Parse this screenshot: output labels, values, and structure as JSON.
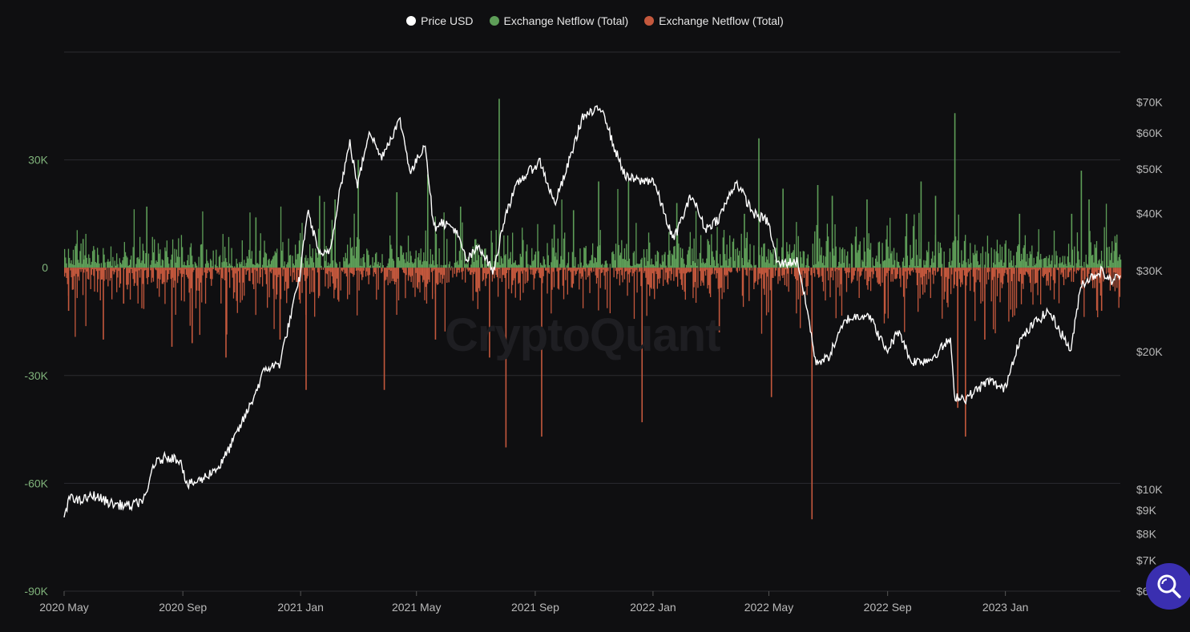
{
  "colors": {
    "price": "#ffffff",
    "inflow": "#5e9e58",
    "outflow": "#c4583d",
    "left_axis_text": "#7fb27a",
    "right_axis_text": "#b9b9b9",
    "grid": "#2b2b30",
    "background": "#0f0f11"
  },
  "watermark": "CryptoQuant",
  "search_icon": "magnifier-icon",
  "chart_data": {
    "type": "bar+line",
    "legend": [
      {
        "label": "Price USD",
        "color": "#ffffff"
      },
      {
        "label": "Exchange Netflow (Total)",
        "color": "#5e9e58"
      },
      {
        "label": "Exchange Netflow (Total)",
        "color": "#c4583d"
      }
    ],
    "x_range": [
      "2020-05-01",
      "2023-04-30"
    ],
    "x_ticks": [
      {
        "label": "2020 May",
        "date": "2020-05-01"
      },
      {
        "label": "2020 Sep",
        "date": "2020-09-01"
      },
      {
        "label": "2021 Jan",
        "date": "2021-01-01"
      },
      {
        "label": "2021 May",
        "date": "2021-05-01"
      },
      {
        "label": "2021 Sep",
        "date": "2021-09-01"
      },
      {
        "label": "2022 Jan",
        "date": "2022-01-01"
      },
      {
        "label": "2022 May",
        "date": "2022-05-01"
      },
      {
        "label": "2022 Sep",
        "date": "2022-09-01"
      },
      {
        "label": "2023 Jan",
        "date": "2023-01-01"
      }
    ],
    "left_axis": {
      "range": [
        -90000,
        60000
      ],
      "ticks": [
        {
          "label": "30K",
          "value": 30000
        },
        {
          "label": "0",
          "value": 0
        },
        {
          "label": "-30K",
          "value": -30000
        },
        {
          "label": "-60K",
          "value": -60000
        },
        {
          "label": "-90K",
          "value": -90000
        }
      ]
    },
    "right_axis": {
      "scale": "log",
      "range": [
        6000,
        90000
      ],
      "ticks": [
        {
          "label": "$70K",
          "value": 70000
        },
        {
          "label": "$60K",
          "value": 60000
        },
        {
          "label": "$50K",
          "value": 50000
        },
        {
          "label": "$40K",
          "value": 40000
        },
        {
          "label": "$30K",
          "value": 30000
        },
        {
          "label": "$20K",
          "value": 20000
        },
        {
          "label": "$10K",
          "value": 10000
        },
        {
          "label": "$9K",
          "value": 9000
        },
        {
          "label": "$8K",
          "value": 8000
        },
        {
          "label": "$7K",
          "value": 7000
        },
        {
          "label": "$6K",
          "value": 6000
        }
      ]
    },
    "price_series": [
      [
        "2020-05-01",
        8600
      ],
      [
        "2020-05-08",
        9800
      ],
      [
        "2020-05-15",
        9400
      ],
      [
        "2020-06-01",
        9700
      ],
      [
        "2020-06-20",
        9300
      ],
      [
        "2020-07-10",
        9200
      ],
      [
        "2020-07-25",
        9600
      ],
      [
        "2020-08-01",
        11300
      ],
      [
        "2020-08-15",
        11800
      ],
      [
        "2020-08-30",
        11600
      ],
      [
        "2020-09-05",
        10200
      ],
      [
        "2020-09-20",
        10500
      ],
      [
        "2020-10-10",
        11300
      ],
      [
        "2020-10-25",
        13000
      ],
      [
        "2020-11-10",
        15300
      ],
      [
        "2020-11-25",
        18300
      ],
      [
        "2020-12-10",
        18800
      ],
      [
        "2020-12-20",
        23000
      ],
      [
        "2020-12-31",
        29000
      ],
      [
        "2021-01-08",
        40500
      ],
      [
        "2021-01-22",
        32000
      ],
      [
        "2021-02-01",
        33500
      ],
      [
        "2021-02-10",
        44500
      ],
      [
        "2021-02-21",
        57000
      ],
      [
        "2021-03-01",
        46000
      ],
      [
        "2021-03-13",
        61000
      ],
      [
        "2021-03-25",
        53000
      ],
      [
        "2021-04-14",
        64000
      ],
      [
        "2021-04-25",
        49000
      ],
      [
        "2021-05-10",
        57000
      ],
      [
        "2021-05-19",
        37000
      ],
      [
        "2021-05-25",
        38500
      ],
      [
        "2021-06-10",
        37000
      ],
      [
        "2021-06-22",
        31500
      ],
      [
        "2021-07-05",
        34000
      ],
      [
        "2021-07-20",
        29800
      ],
      [
        "2021-08-01",
        40000
      ],
      [
        "2021-08-15",
        47000
      ],
      [
        "2021-09-06",
        52000
      ],
      [
        "2021-09-21",
        42000
      ],
      [
        "2021-10-01",
        48000
      ],
      [
        "2021-10-20",
        65000
      ],
      [
        "2021-11-10",
        68000
      ],
      [
        "2021-11-20",
        57000
      ],
      [
        "2021-12-04",
        48000
      ],
      [
        "2021-12-20",
        47000
      ],
      [
        "2022-01-01",
        47500
      ],
      [
        "2022-01-22",
        35000
      ],
      [
        "2022-02-10",
        44000
      ],
      [
        "2022-02-24",
        37000
      ],
      [
        "2022-03-10",
        39000
      ],
      [
        "2022-03-28",
        47000
      ],
      [
        "2022-04-15",
        40000
      ],
      [
        "2022-04-30",
        38500
      ],
      [
        "2022-05-10",
        31000
      ],
      [
        "2022-05-31",
        31500
      ],
      [
        "2022-06-13",
        22500
      ],
      [
        "2022-06-18",
        19000
      ],
      [
        "2022-07-01",
        19300
      ],
      [
        "2022-07-20",
        23500
      ],
      [
        "2022-08-12",
        24200
      ],
      [
        "2022-08-31",
        20000
      ],
      [
        "2022-09-13",
        22300
      ],
      [
        "2022-09-25",
        19000
      ],
      [
        "2022-10-15",
        19200
      ],
      [
        "2022-11-05",
        21300
      ],
      [
        "2022-11-09",
        16000
      ],
      [
        "2022-11-21",
        15800
      ],
      [
        "2022-12-15",
        17300
      ],
      [
        "2022-12-31",
        16500
      ],
      [
        "2023-01-14",
        20800
      ],
      [
        "2023-01-31",
        23100
      ],
      [
        "2023-02-15",
        24500
      ],
      [
        "2023-03-10",
        20100
      ],
      [
        "2023-03-20",
        28000
      ],
      [
        "2023-04-10",
        30000
      ],
      [
        "2023-04-20",
        28500
      ],
      [
        "2023-04-30",
        29300
      ]
    ],
    "netflow_spikes": [
      [
        "2020-05-05",
        -12000
      ],
      [
        "2020-05-20",
        8000
      ],
      [
        "2020-06-10",
        -20000
      ],
      [
        "2020-07-01",
        -10000
      ],
      [
        "2020-07-25",
        17000
      ],
      [
        "2020-08-20",
        -22000
      ],
      [
        "2020-09-10",
        -21000
      ],
      [
        "2020-10-15",
        -25000
      ],
      [
        "2020-11-15",
        14000
      ],
      [
        "2020-12-10",
        -20000
      ],
      [
        "2021-01-06",
        -34000
      ],
      [
        "2021-01-20",
        20000
      ],
      [
        "2021-02-05",
        19000
      ],
      [
        "2021-03-01",
        30000
      ],
      [
        "2021-03-28",
        -34000
      ],
      [
        "2021-04-10",
        21000
      ],
      [
        "2021-05-12",
        26000
      ],
      [
        "2021-05-20",
        -20000
      ],
      [
        "2021-06-15",
        17000
      ],
      [
        "2021-07-15",
        -25000
      ],
      [
        "2021-07-25",
        47000
      ],
      [
        "2021-08-01",
        -50000
      ],
      [
        "2021-09-07",
        -47000
      ],
      [
        "2021-09-20",
        12000
      ],
      [
        "2021-10-10",
        16000
      ],
      [
        "2021-11-05",
        24000
      ],
      [
        "2021-12-06",
        24000
      ],
      [
        "2021-12-20",
        -43000
      ],
      [
        "2022-01-25",
        18000
      ],
      [
        "2022-03-10",
        -18000
      ],
      [
        "2022-04-05",
        15000
      ],
      [
        "2022-04-20",
        36000
      ],
      [
        "2022-05-03",
        -36000
      ],
      [
        "2022-05-15",
        22000
      ],
      [
        "2022-06-14",
        -70000
      ],
      [
        "2022-06-20",
        23000
      ],
      [
        "2022-07-05",
        20000
      ],
      [
        "2022-08-10",
        19000
      ],
      [
        "2022-09-20",
        15000
      ],
      [
        "2022-10-05",
        24000
      ],
      [
        "2022-10-20",
        20000
      ],
      [
        "2022-11-09",
        43000
      ],
      [
        "2022-11-12",
        -39000
      ],
      [
        "2022-11-20",
        -47000
      ],
      [
        "2022-12-10",
        -20000
      ],
      [
        "2023-01-15",
        15000
      ],
      [
        "2023-03-10",
        15000
      ],
      [
        "2023-03-20",
        27000
      ],
      [
        "2023-03-28",
        19000
      ],
      [
        "2023-04-10",
        -12000
      ]
    ]
  }
}
